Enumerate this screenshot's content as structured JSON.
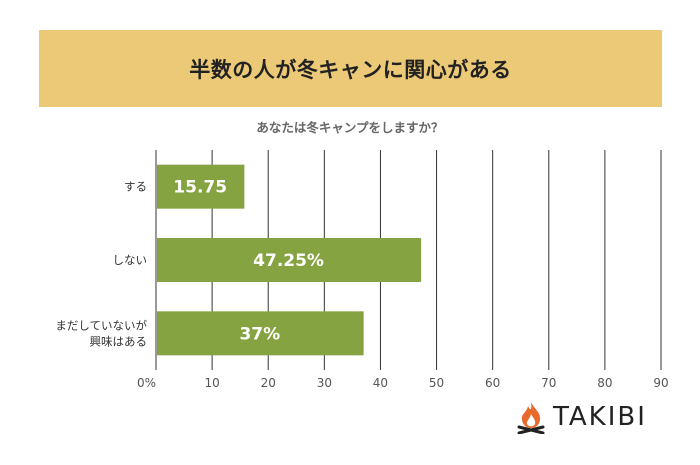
{
  "header": {
    "title": "半数の人が冬キャンに関心がある"
  },
  "chart_data": {
    "type": "bar",
    "orientation": "horizontal",
    "title": "あなたは冬キャンプをしますか？",
    "categories": [
      "する",
      "しない",
      "まだしていないが興味はある"
    ],
    "category_lines": [
      [
        "する"
      ],
      [
        "しない"
      ],
      [
        "まだしていないが",
        "興味はある"
      ]
    ],
    "values": [
      15.75,
      47.25,
      37
    ],
    "data_labels": [
      "15.75",
      "47.25%",
      "37%"
    ],
    "xlim": [
      0,
      90
    ],
    "ticks": [
      0,
      10,
      20,
      30,
      40,
      50,
      60,
      70,
      80,
      90
    ],
    "tick_labels": [
      "0%",
      "10",
      "20",
      "30",
      "40",
      "50",
      "60",
      "70",
      "80",
      "90"
    ],
    "grid": true,
    "bar_color": "#86a342",
    "grid_color": "#333333"
  },
  "brand": {
    "name": "TAKIBI",
    "logo_icon": "campfire-icon",
    "logo_color": "#e8692c"
  }
}
